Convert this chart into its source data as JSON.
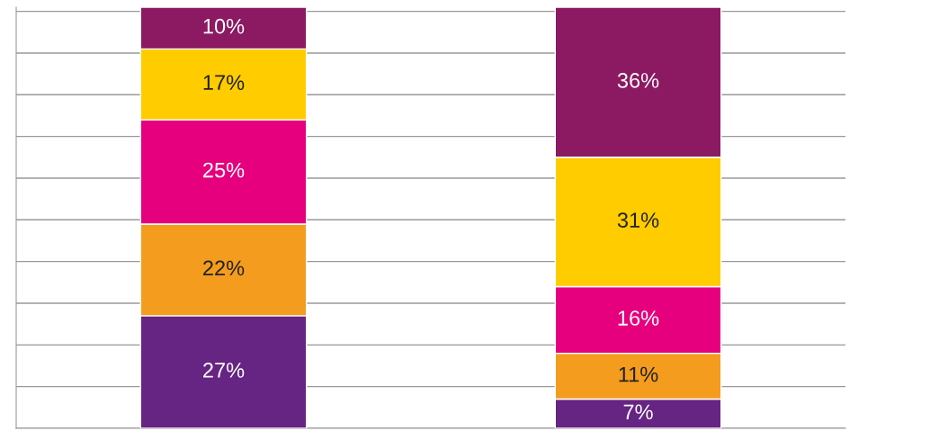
{
  "chart_data": {
    "type": "bar",
    "stacked": true,
    "categories": [
      null,
      null
    ],
    "series": [
      {
        "color": "#662483",
        "values": [
          27,
          7
        ],
        "value_labels": [
          "27%",
          "7%"
        ]
      },
      {
        "color": "#f39c1e",
        "values": [
          22,
          11
        ],
        "value_labels": [
          "22%",
          "11%"
        ]
      },
      {
        "color": "#e6007e",
        "values": [
          25,
          16
        ],
        "value_labels": [
          "25%",
          "16%"
        ]
      },
      {
        "color": "#ffcc00",
        "values": [
          17,
          31
        ],
        "value_labels": [
          "17%",
          "31%"
        ]
      },
      {
        "color": "#8b1a62",
        "values": [
          10,
          36
        ],
        "value_labels": [
          "10%",
          "36%"
        ]
      }
    ],
    "ylim": [
      0,
      101
    ],
    "yticks": [
      {
        "value": 0,
        "label": null
      },
      {
        "value": 10,
        "label": null
      },
      {
        "value": 20,
        "label": null
      },
      {
        "value": 30,
        "label": null
      },
      {
        "value": 40,
        "label": null
      },
      {
        "value": 50,
        "label": null
      },
      {
        "value": 60,
        "label": null
      },
      {
        "value": 70,
        "label": null
      },
      {
        "value": 80,
        "label": null
      },
      {
        "value": 90,
        "label": null
      },
      {
        "value": 100,
        "label": null
      }
    ],
    "grid": "y",
    "legend": false
  }
}
